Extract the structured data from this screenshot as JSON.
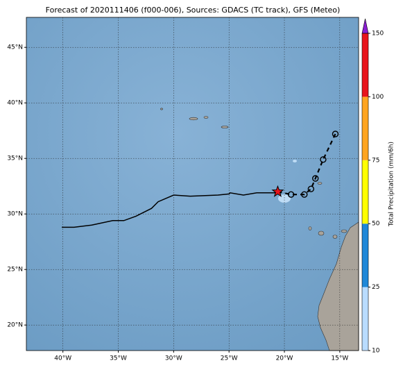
{
  "title": "Forecast of 2020111406 (f000-006), Sources: GDACS (TC track), GFS (Meteo)",
  "map": {
    "xlim": [
      -43.3,
      -13.3
    ],
    "ylim": [
      17.7,
      47.7
    ],
    "xticks": [
      {
        "value": -40,
        "label": "40°W"
      },
      {
        "value": -35,
        "label": "35°W"
      },
      {
        "value": -30,
        "label": "30°W"
      },
      {
        "value": -25,
        "label": "25°W"
      },
      {
        "value": -20,
        "label": "20°W"
      },
      {
        "value": -15,
        "label": "15°W"
      }
    ],
    "yticks": [
      {
        "value": 20,
        "label": "20°N"
      },
      {
        "value": 25,
        "label": "25°N"
      },
      {
        "value": 30,
        "label": "30°N"
      },
      {
        "value": 35,
        "label": "35°N"
      },
      {
        "value": 40,
        "label": "40°N"
      },
      {
        "value": 45,
        "label": "45°N"
      }
    ],
    "grid": true
  },
  "track": {
    "past": {
      "lon": [
        -40.1,
        -39,
        -37.4,
        -35.5,
        -34.5,
        -33.4,
        -32,
        -31.4,
        -30,
        -28.5,
        -26,
        -25,
        -24.9,
        -23.7,
        -22.5,
        -20.8
      ],
      "lat": [
        28.8,
        28.8,
        29.0,
        29.4,
        29.4,
        29.8,
        30.5,
        31.1,
        31.7,
        31.6,
        31.7,
        31.8,
        31.9,
        31.7,
        31.9,
        31.9
      ]
    },
    "current": {
      "lon": -20.6,
      "lat": 32.0
    },
    "forecast": {
      "lon": [
        -20.6,
        -19.4,
        -18.2,
        -17.6,
        -17.2,
        -16.5,
        -15.4
      ],
      "lat": [
        32.0,
        31.75,
        31.75,
        32.25,
        33.2,
        34.9,
        37.2
      ]
    }
  },
  "colorbar": {
    "label": "Total Precipitation (mm/6h)",
    "bounds": [
      10,
      25,
      50,
      75,
      100,
      150
    ],
    "colors": [
      "#b9dcff",
      "#1f88d8",
      "#ffff00",
      "#ffa520",
      "#e8141c"
    ],
    "extend_color": "#8a1ed2"
  }
}
